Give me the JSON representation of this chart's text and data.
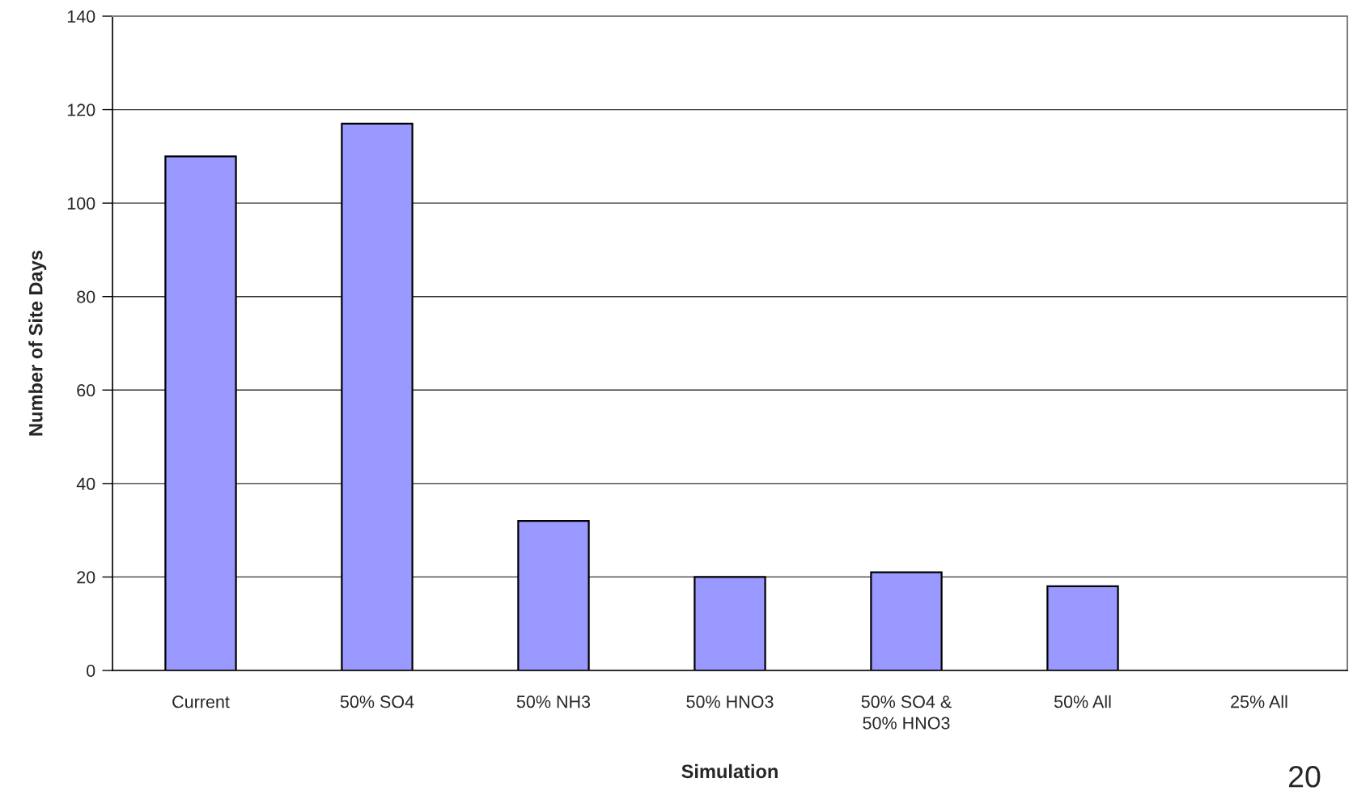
{
  "chart_data": {
    "type": "bar",
    "xlabel": "Simulation",
    "ylabel": "Number of Site Days",
    "categories": [
      "Current",
      "50% SO4",
      "50% NH3",
      "50% HNO3",
      "50% SO4 &\n50% HNO3",
      "50% All",
      "25% All"
    ],
    "values": [
      110,
      117,
      32,
      20,
      21,
      18,
      null
    ],
    "color": "#9999ff",
    "ylim": [
      0,
      140
    ],
    "yticks": [
      0,
      20,
      40,
      60,
      80,
      100,
      120,
      140
    ],
    "grid": "y",
    "annotations": [
      "20"
    ]
  }
}
